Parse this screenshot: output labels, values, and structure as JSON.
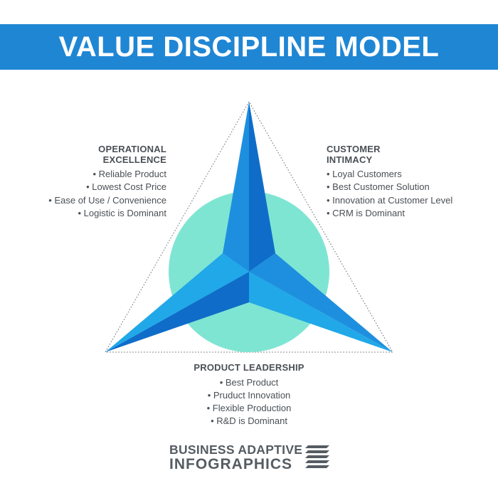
{
  "title": "VALUE DISCIPLINE MODEL",
  "colors": {
    "banner": "#1f86d4",
    "circle": "#7fe5d3",
    "star_light": "#21a8e8",
    "star_mid": "#1e8fdf",
    "star_dark": "#0f6dc9",
    "text": "#4a4f55"
  },
  "operational_excellence": {
    "heading_line1": "OPERATIONAL",
    "heading_line2": "EXCELLENCE",
    "items": [
      "Reliable Product",
      "Lowest Cost Price",
      "Ease of Use / Convenience",
      "Logistic is Dominant"
    ]
  },
  "customer_intimacy": {
    "heading_line1": "CUSTOMER",
    "heading_line2": "INTIMACY",
    "items": [
      "Loyal Customers",
      "Best Customer Solution",
      "Innovation at Customer Level",
      "CRM is Dominant"
    ]
  },
  "product_leadership": {
    "heading": "PRODUCT LEADERSHIP",
    "items": [
      "Best Product",
      "Pruduct Innovation",
      "Flexible Production",
      "R&D is Dominant"
    ]
  },
  "logo": {
    "line1": "BUSINESS ADAPTIVE",
    "line2": "INFOGRAPHICS",
    "icon": "stripes-logo-icon"
  }
}
